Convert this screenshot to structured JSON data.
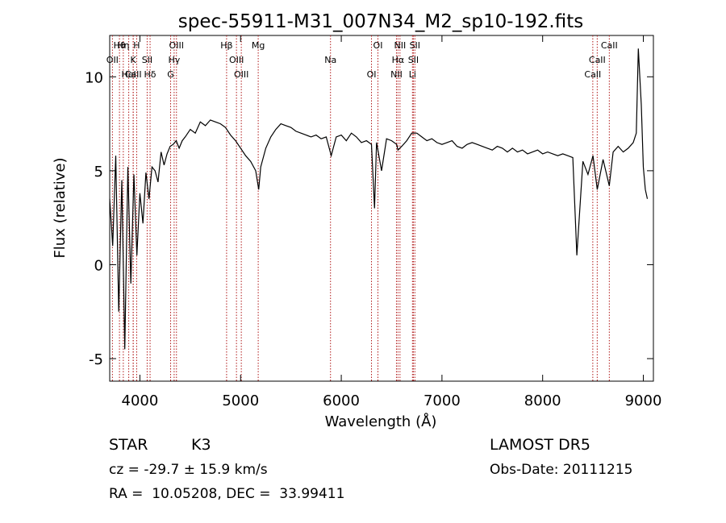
{
  "chart_data": {
    "type": "line",
    "title": "spec-55911-M31_007N34_M2_sp10-192.fits",
    "xlabel": "Wavelength (Å)",
    "ylabel": "Flux (relative)",
    "xlim": [
      3700,
      9100
    ],
    "ylim": [
      -6.2,
      12.2
    ],
    "xticks": [
      4000,
      5000,
      6000,
      7000,
      8000,
      9000
    ],
    "yticks": [
      -5,
      0,
      5,
      10
    ],
    "grid": false,
    "series": [
      {
        "x": [
          3700,
          3730,
          3760,
          3790,
          3820,
          3850,
          3880,
          3910,
          3940,
          3970,
          4000,
          4030,
          4060,
          4090,
          4120,
          4150,
          4180,
          4210,
          4240,
          4270,
          4300,
          4330,
          4360,
          4390,
          4420,
          4450,
          4500,
          4550,
          4600,
          4650,
          4700,
          4750,
          4800,
          4850,
          4900,
          4950,
          5000,
          5050,
          5100,
          5150,
          5180,
          5200,
          5250,
          5300,
          5350,
          5400,
          5450,
          5500,
          5550,
          5600,
          5650,
          5700,
          5750,
          5800,
          5850,
          5900,
          5950,
          6000,
          6050,
          6100,
          6150,
          6200,
          6250,
          6300,
          6330,
          6350,
          6400,
          6450,
          6500,
          6550,
          6563,
          6600,
          6650,
          6700,
          6750,
          6800,
          6850,
          6900,
          6950,
          7000,
          7050,
          7100,
          7150,
          7200,
          7250,
          7300,
          7350,
          7400,
          7450,
          7500,
          7550,
          7600,
          7650,
          7700,
          7750,
          7800,
          7850,
          7900,
          7950,
          8000,
          8050,
          8100,
          8150,
          8200,
          8250,
          8300,
          8340,
          8400,
          8450,
          8500,
          8542,
          8600,
          8662,
          8700,
          8750,
          8800,
          8850,
          8900,
          8930,
          8950,
          8980,
          9000,
          9020,
          9040
        ],
        "y": [
          3.5,
          1.0,
          5.8,
          -2.5,
          4.5,
          -4.5,
          5.2,
          -1.0,
          4.8,
          0.5,
          3.8,
          2.2,
          4.9,
          3.5,
          5.2,
          5.0,
          4.4,
          6.0,
          5.3,
          5.9,
          6.3,
          6.4,
          6.6,
          6.2,
          6.6,
          6.8,
          7.2,
          7.0,
          7.6,
          7.4,
          7.7,
          7.6,
          7.5,
          7.3,
          6.9,
          6.6,
          6.2,
          5.8,
          5.5,
          5.0,
          4.0,
          5.2,
          6.2,
          6.8,
          7.2,
          7.5,
          7.4,
          7.3,
          7.1,
          7.0,
          6.9,
          6.8,
          6.9,
          6.7,
          6.8,
          5.8,
          6.8,
          6.9,
          6.6,
          7.0,
          6.8,
          6.5,
          6.6,
          6.4,
          3.0,
          6.5,
          5.0,
          6.7,
          6.6,
          6.4,
          6.1,
          6.3,
          6.6,
          7.0,
          7.0,
          6.8,
          6.6,
          6.7,
          6.5,
          6.4,
          6.5,
          6.6,
          6.3,
          6.2,
          6.4,
          6.5,
          6.4,
          6.3,
          6.2,
          6.1,
          6.3,
          6.2,
          6.0,
          6.2,
          6.0,
          6.1,
          5.9,
          6.0,
          6.1,
          5.9,
          6.0,
          5.9,
          5.8,
          5.9,
          5.8,
          5.7,
          0.5,
          5.5,
          4.8,
          5.8,
          4.0,
          5.6,
          4.2,
          6.0,
          6.3,
          6.0,
          6.2,
          6.5,
          7.0,
          11.5,
          8.5,
          5.2,
          4.0,
          3.5
        ]
      }
    ],
    "lines": [
      {
        "name": "Hθ",
        "x": 3797
      },
      {
        "name": "OII",
        "x": 3727
      },
      {
        "name": "CaII",
        "x": 3934
      },
      {
        "name": "Hη",
        "x": 3835
      },
      {
        "name": "K",
        "x": 3933
      },
      {
        "name": "HeI",
        "x": 3889
      },
      {
        "name": "H",
        "x": 3968
      },
      {
        "name": "SII",
        "x": 4072
      },
      {
        "name": "Hδ",
        "x": 4101
      },
      {
        "name": "OIII",
        "x": 4363
      },
      {
        "name": "Hγ",
        "x": 4340
      },
      {
        "name": "G",
        "x": 4305
      },
      {
        "name": "Hβ",
        "x": 4861
      },
      {
        "name": "OIII",
        "x": 4959
      },
      {
        "name": "OIII",
        "x": 5007
      },
      {
        "name": "Mg",
        "x": 5175
      },
      {
        "name": "Na",
        "x": 5893
      },
      {
        "name": "OI",
        "x": 6300
      },
      {
        "name": "OI",
        "x": 6364
      },
      {
        "name": "Hα",
        "x": 6563
      },
      {
        "name": "NII",
        "x": 6548
      },
      {
        "name": "NII",
        "x": 6583
      },
      {
        "name": "SII",
        "x": 6716
      },
      {
        "name": "Li",
        "x": 6707
      },
      {
        "name": "SII",
        "x": 6731
      },
      {
        "name": "CaII",
        "x": 8542
      },
      {
        "name": "CaII",
        "x": 8498
      },
      {
        "name": "CaII",
        "x": 8662
      }
    ]
  },
  "footer": {
    "object_class": "STAR",
    "subclass": "K3",
    "survey": "LAMOST DR5",
    "cz": "cz = -29.7 ± 15.9 km/s",
    "obs_date": "Obs-Date: 20111215",
    "radec": "RA =  10.05208, DEC =  33.99411"
  }
}
